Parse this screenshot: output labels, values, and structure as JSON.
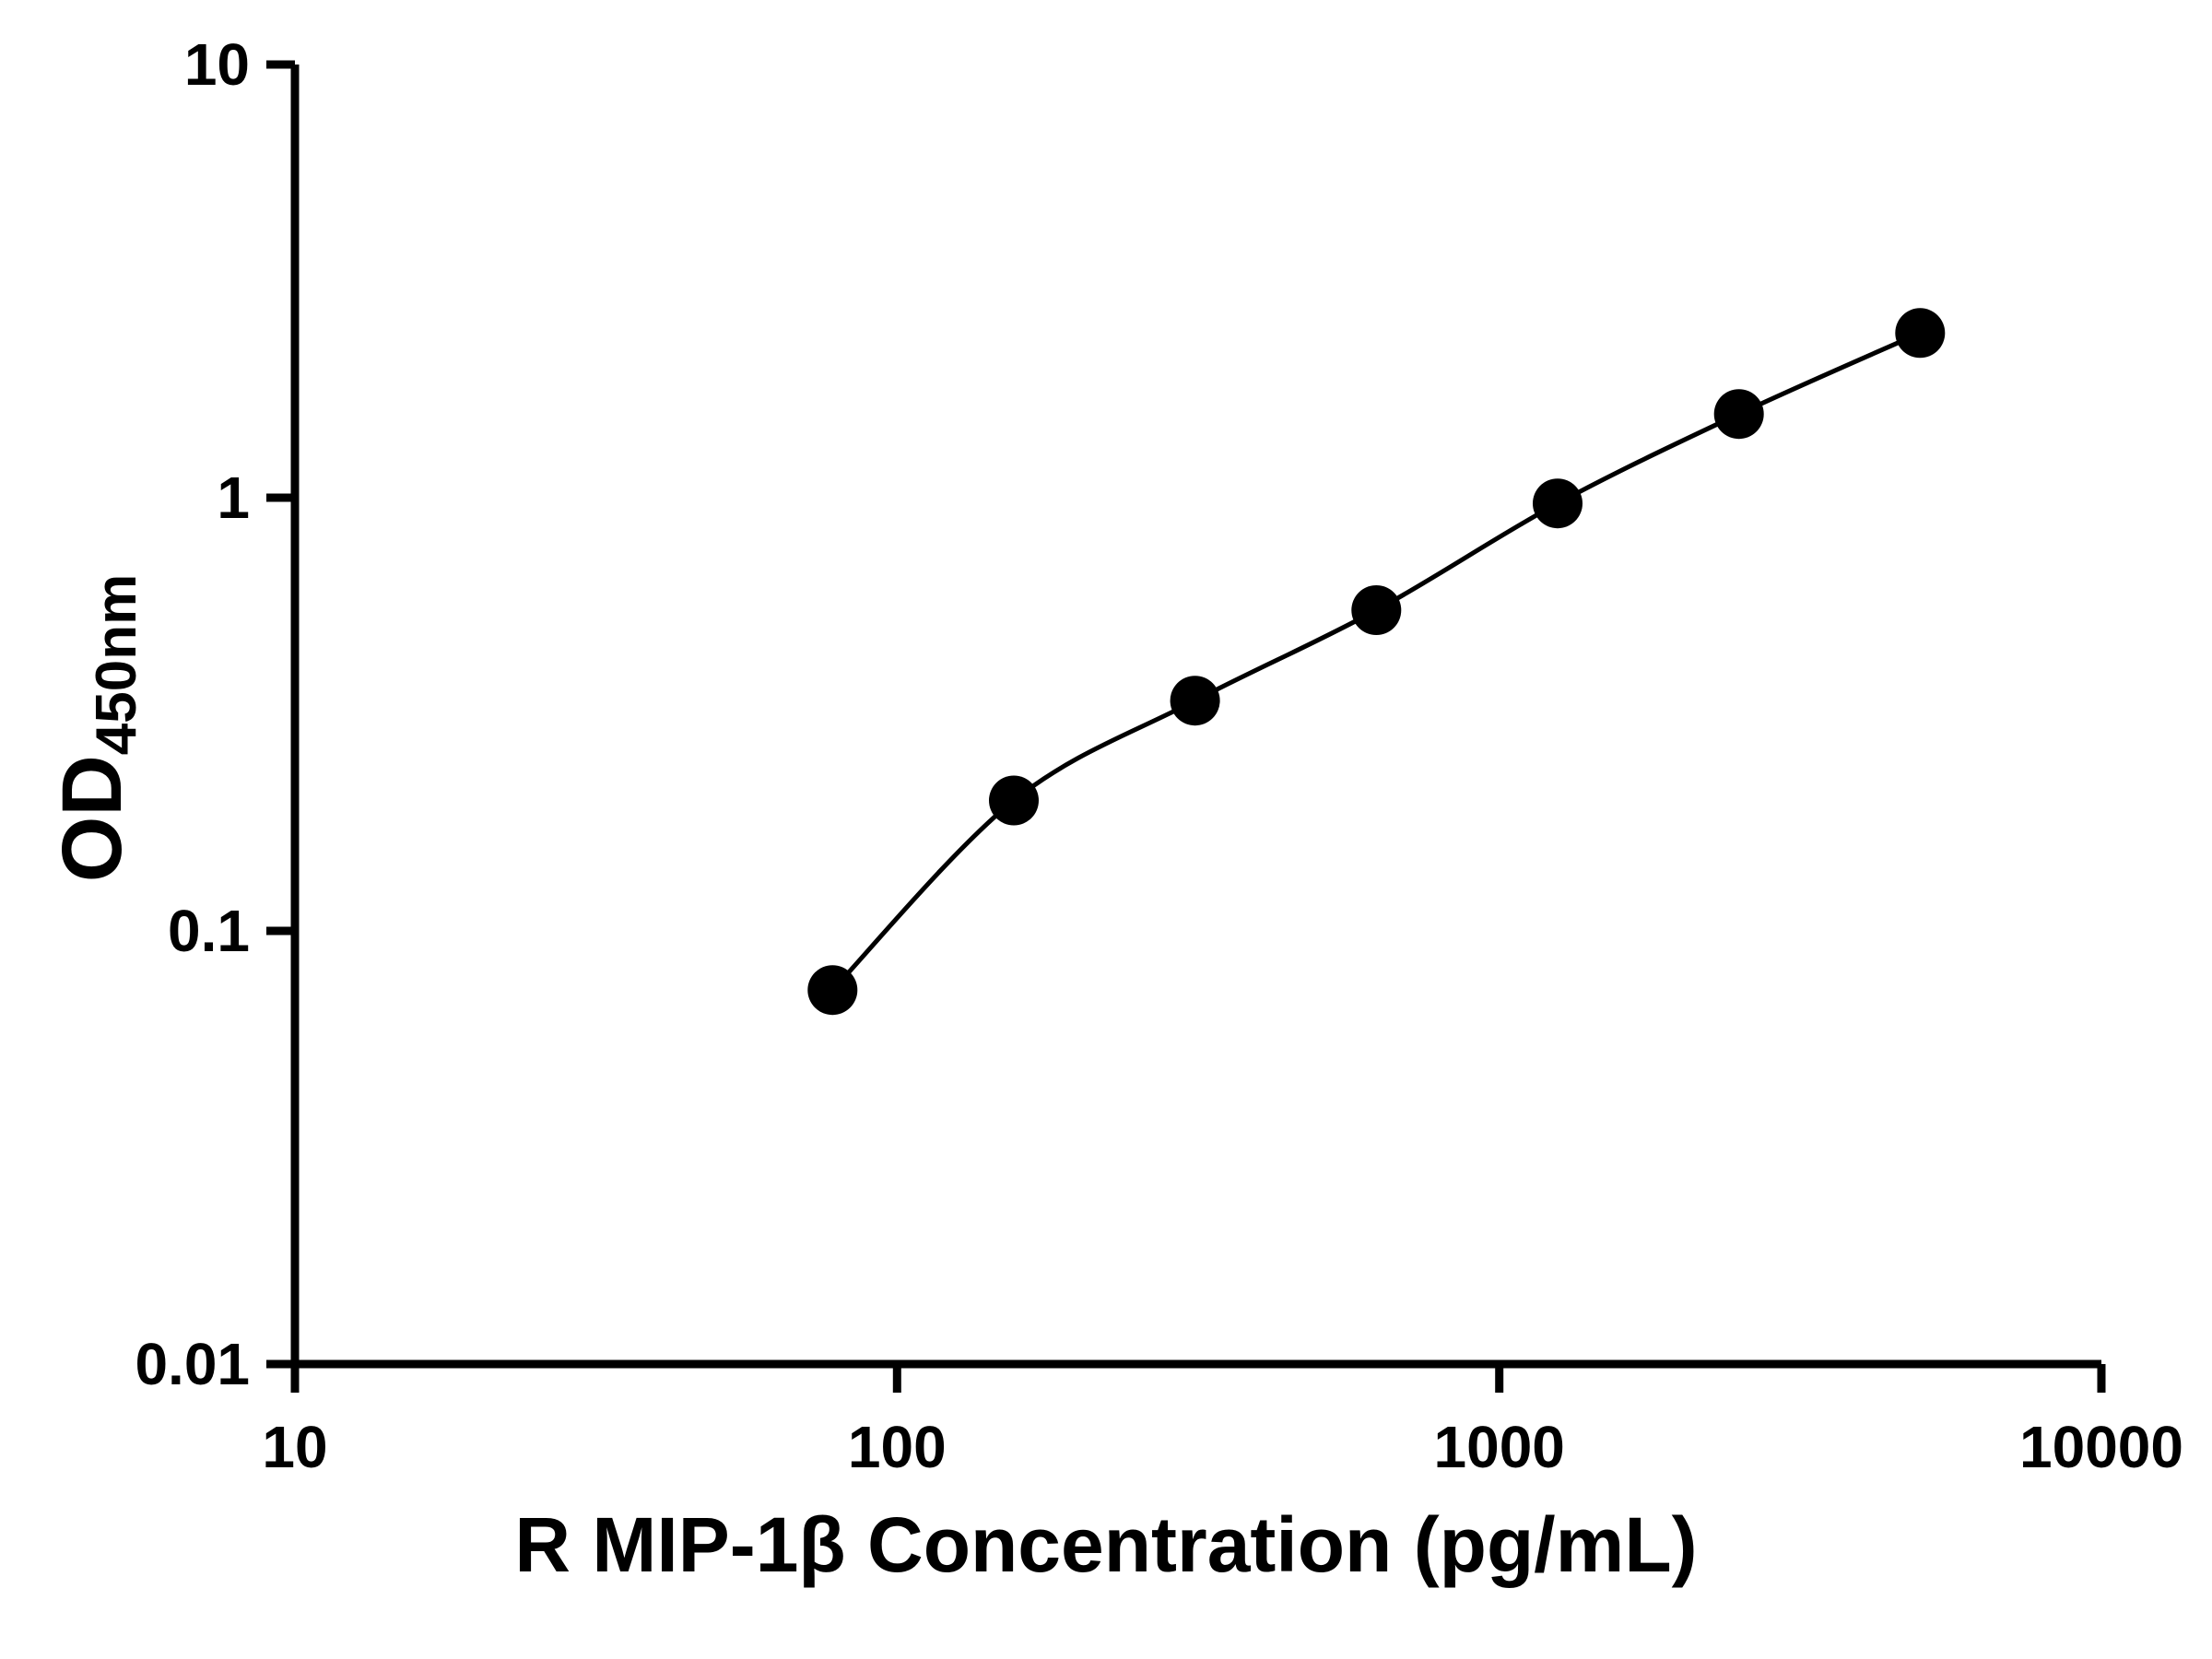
{
  "chart": {
    "xlabel": "R MIP-1β Concentration (pg/mL)",
    "ylabel_main": "OD",
    "ylabel_sub": "450nm"
  },
  "chart_data": {
    "type": "scatter",
    "title": "",
    "xlabel": "R MIP-1β Concentration (pg/mL)",
    "ylabel": "OD450nm",
    "x_scale": "log",
    "y_scale": "log",
    "xlim": [
      10,
      10000
    ],
    "ylim": [
      0.01,
      10
    ],
    "x_ticks": [
      10,
      100,
      1000,
      10000
    ],
    "x_tick_labels": [
      "10",
      "100",
      "1000",
      "10000"
    ],
    "y_ticks": [
      0.01,
      0.1,
      1,
      10
    ],
    "y_tick_labels": [
      "0.01",
      "0.1",
      "1",
      "10"
    ],
    "x": [
      78.125,
      156.25,
      312.5,
      625,
      1250,
      2500,
      5000
    ],
    "y": [
      0.073,
      0.2,
      0.34,
      0.55,
      0.97,
      1.56,
      2.4
    ],
    "grid": false,
    "legend": false,
    "line": "smooth-fit-curve",
    "marker": "filled-circle",
    "marker_color": "#000000",
    "line_color": "#000000",
    "axis_color": "#000000",
    "background": "#ffffff"
  }
}
